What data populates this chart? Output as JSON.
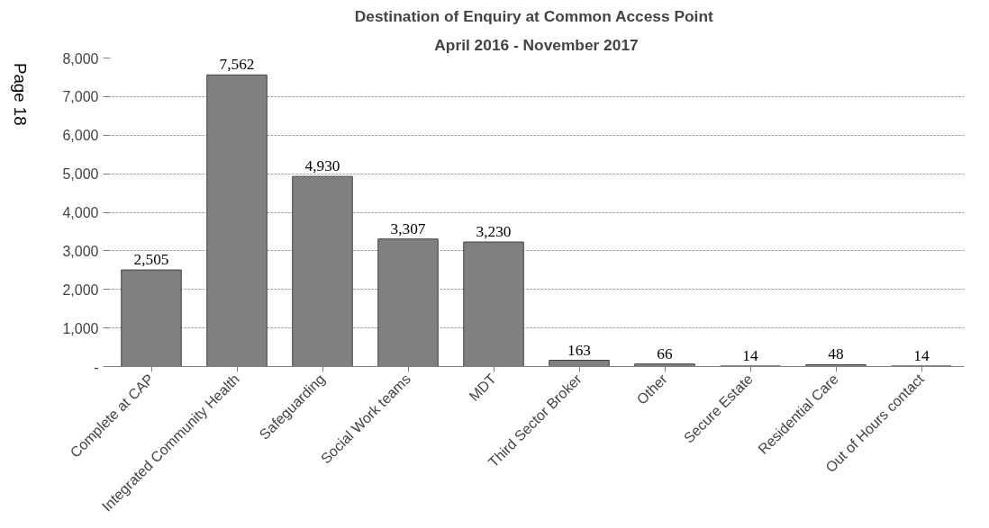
{
  "chart_data": {
    "type": "bar",
    "title": "Destination  of Enquiry at Common Access Point",
    "subtitle": "April 2016 - November 2017",
    "categories": [
      "Complete at CAP",
      "Integrated Community Health",
      "Safeguarding",
      "Social Work teams",
      "MDT",
      "Third Sector Broker",
      "Other",
      "Secure Estate",
      "Residential Care",
      "Out of Hours contact"
    ],
    "values": [
      2505,
      7562,
      4930,
      3307,
      3230,
      163,
      66,
      14,
      48,
      14
    ],
    "color": "#808080",
    "ylim": [
      0,
      8000
    ],
    "yticks": [
      {
        "value": 0,
        "label": "-"
      },
      {
        "value": 1000,
        "label": "1,000"
      },
      {
        "value": 2000,
        "label": "2,000"
      },
      {
        "value": 3000,
        "label": "3,000"
      },
      {
        "value": 4000,
        "label": "4,000"
      },
      {
        "value": 5000,
        "label": "5,000"
      },
      {
        "value": 6000,
        "label": "6,000"
      },
      {
        "value": 7000,
        "label": "7,000"
      },
      {
        "value": 8000,
        "label": "8,000"
      }
    ],
    "grid": "y",
    "value_labels": [
      "2,505",
      "7,562",
      "4,930",
      "3,307",
      "3,230",
      "163",
      "66",
      "14",
      "48",
      "14"
    ],
    "annotations": [
      "Page 18"
    ]
  }
}
